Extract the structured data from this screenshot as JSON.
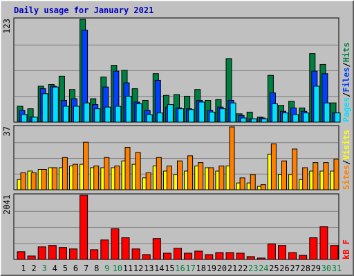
{
  "chart_data": [
    {
      "type": "bar",
      "title": "Daily usage for January 2021",
      "ylim": [
        0,
        123
      ],
      "yticks": [
        123
      ],
      "legend_separator": "/",
      "series": [
        {
          "name": "Hits",
          "color": "#008040",
          "values": [
            19,
            16,
            43,
            45,
            55,
            39,
            123,
            28,
            54,
            68,
            62,
            40,
            26,
            58,
            32,
            33,
            31,
            39,
            26,
            27,
            76,
            10,
            12,
            6,
            56,
            20,
            25,
            17,
            82,
            69,
            23
          ]
        },
        {
          "name": "Files",
          "color": "#0040ff",
          "values": [
            14,
            6,
            40,
            43,
            26,
            28,
            110,
            21,
            42,
            61,
            47,
            24,
            14,
            50,
            18,
            17,
            16,
            26,
            14,
            18,
            26,
            8,
            4,
            5,
            35,
            13,
            17,
            13,
            61,
            58,
            11
          ]
        },
        {
          "name": "Pages",
          "color": "#00e0ff",
          "values": [
            9,
            6,
            34,
            42,
            19,
            19,
            23,
            16,
            18,
            19,
            31,
            22,
            9,
            11,
            21,
            16,
            15,
            24,
            12,
            16,
            23,
            5,
            4,
            4,
            22,
            11,
            9,
            11,
            43,
            23,
            11
          ]
        }
      ]
    },
    {
      "type": "bar",
      "ylim": [
        0,
        37
      ],
      "yticks": [
        37
      ],
      "legend_separator": "/",
      "series": [
        {
          "name": "Visits",
          "color": "#ffff00",
          "values": [
            6,
            11,
            12,
            13,
            13,
            14,
            15,
            13,
            13,
            13,
            17,
            15,
            7,
            14,
            11,
            9,
            11,
            14,
            13,
            11,
            14,
            4,
            4,
            2,
            21,
            9,
            9,
            6,
            11,
            11,
            11
          ]
        },
        {
          "name": "Sites",
          "color": "#ff8000",
          "values": [
            10,
            10,
            12,
            13,
            19,
            15,
            28,
            14,
            19,
            14,
            25,
            22,
            10,
            19,
            14,
            17,
            20,
            16,
            13,
            14,
            37,
            7,
            9,
            3,
            27,
            17,
            24,
            13,
            16,
            16,
            18
          ]
        }
      ]
    },
    {
      "type": "bar",
      "ylim": [
        0,
        2041
      ],
      "yticks": [
        2041
      ],
      "categories": [
        "1",
        "2",
        "3",
        "4",
        "5",
        "6",
        "7",
        "8",
        "9",
        "10",
        "11",
        "12",
        "13",
        "14",
        "15",
        "16",
        "17",
        "18",
        "19",
        "20",
        "21",
        "22",
        "23",
        "24",
        "25",
        "26",
        "27",
        "28",
        "29",
        "30",
        "31"
      ],
      "category_colors": [
        "#000000",
        "#000000",
        "#008040",
        "#000000",
        "#000000",
        "#000000",
        "#000000",
        "#000000",
        "#008040",
        "#008040",
        "#000000",
        "#000000",
        "#000000",
        "#000000",
        "#000000",
        "#008040",
        "#008040",
        "#000000",
        "#000000",
        "#000000",
        "#000000",
        "#000000",
        "#008040",
        "#008040",
        "#000000",
        "#000000",
        "#000000",
        "#000000",
        "#000000",
        "#008040",
        "#008040"
      ],
      "series": [
        {
          "name": "kB F",
          "color": "#ff0000",
          "values": [
            245,
            110,
            400,
            445,
            380,
            335,
            2041,
            310,
            620,
            975,
            690,
            335,
            155,
            665,
            200,
            355,
            200,
            265,
            155,
            220,
            220,
            200,
            90,
            45,
            490,
            445,
            220,
            130,
            690,
            1040,
            445
          ]
        }
      ]
    }
  ]
}
